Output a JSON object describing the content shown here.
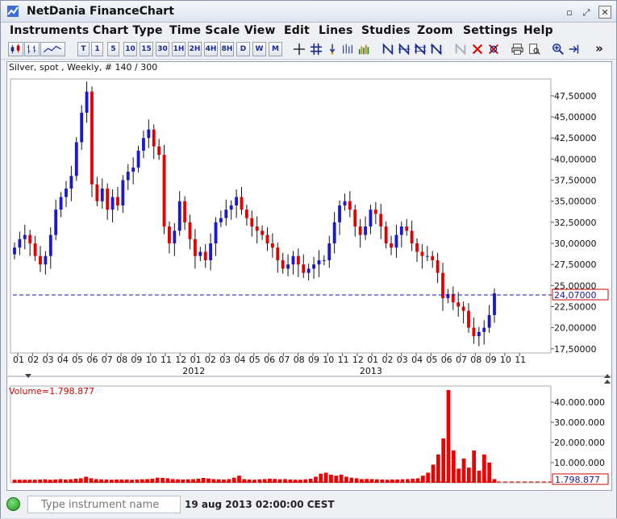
{
  "window": {
    "title": "NetDania FinanceChart",
    "minimize_glyph": "▫",
    "maximize_glyph": "⤢",
    "close_glyph": "✕"
  },
  "menu": [
    "Instruments",
    "Chart Type",
    "Time Scale",
    "View",
    "Edit",
    "Lines",
    "Studies",
    "Zoom",
    "Settings",
    "Help"
  ],
  "toolbar": {
    "periods": [
      "T",
      "1",
      "5",
      "10",
      "15",
      "30",
      "1H",
      "2H",
      "4H",
      "8H",
      "D",
      "W",
      "M"
    ],
    "overflow": "»"
  },
  "chart": {
    "header": "Silver, spot , Weekly, # 140 / 300",
    "last_price_label": "24,07000",
    "volume_header": "Volume=1.798.877",
    "volume_last_label": "1.798.877",
    "price_axis_ticks": [
      "47,50000",
      "45,00000",
      "42,50000",
      "40,00000",
      "37,50000",
      "35,00000",
      "32,50000",
      "30,00000",
      "27,50000",
      "25,00000",
      "22,50000",
      "20,00000",
      "17,50000"
    ],
    "volume_axis_ticks": [
      "40.000.000",
      "30.000.000",
      "20.000.000",
      "10.000.000"
    ],
    "month_ticks": [
      "01",
      "02",
      "03",
      "04",
      "05",
      "06",
      "07",
      "08",
      "09",
      "10",
      "11",
      "12",
      "01",
      "02",
      "03",
      "04",
      "05",
      "06",
      "07",
      "08",
      "09",
      "10",
      "11",
      "12",
      "01",
      "02",
      "03",
      "04",
      "05",
      "06",
      "07",
      "08",
      "09",
      "10",
      "11"
    ],
    "year_labels": [
      "2012",
      "2013"
    ],
    "colors": {
      "up": "#1a1acc",
      "down": "#e00000",
      "volume": "#ee0000",
      "last_line": "#1a1a99"
    }
  },
  "chart_data": {
    "type": "candlestick",
    "instrument": "Silver, spot",
    "interval": "Weekly",
    "price_range": [
      17.0,
      49.5
    ],
    "volume_range": [
      0,
      48000000
    ],
    "last_price": 24.07,
    "last_volume": 1798877,
    "weekly_close_approx": [
      29.5,
      30.5,
      31.0,
      30.0,
      28.5,
      27.5,
      28.5,
      31.0,
      34.0,
      35.5,
      36.5,
      38.0,
      42.0,
      45.5,
      48.0,
      37.0,
      35.0,
      36.5,
      34.0,
      35.5,
      34.5,
      37.5,
      38.5,
      39.0,
      41.0,
      42.5,
      43.5,
      41.5,
      40.5,
      32.0,
      30.0,
      31.5,
      35.0,
      32.5,
      30.5,
      28.5,
      29.0,
      28.0,
      30.0,
      32.5,
      33.0,
      34.0,
      34.5,
      35.5,
      34.0,
      33.0,
      32.0,
      31.5,
      31.0,
      30.0,
      29.5,
      28.0,
      27.0,
      27.5,
      28.5,
      27.5,
      26.5,
      27.0,
      27.5,
      28.0,
      28.0,
      30.0,
      32.5,
      34.5,
      35.0,
      34.0,
      32.0,
      31.0,
      32.0,
      34.0,
      33.5,
      32.0,
      30.0,
      29.5,
      31.0,
      32.0,
      31.5,
      30.0,
      29.0,
      28.5,
      28.5,
      28.0,
      26.5,
      23.5,
      24.0,
      23.0,
      22.5,
      22.0,
      20.0,
      19.0,
      19.5,
      20.0,
      21.5,
      24.07
    ],
    "weekly_volume_approx": [
      1.5,
      1.5,
      1.5,
      1.5,
      1.5,
      1.6,
      1.7,
      1.5,
      1.6,
      1.8,
      1.6,
      1.7,
      2.0,
      2.2,
      3.0,
      2.2,
      1.8,
      1.7,
      1.6,
      1.5,
      1.6,
      1.6,
      1.6,
      1.5,
      1.6,
      1.7,
      1.8,
      2.0,
      2.5,
      2.4,
      2.2,
      1.8,
      1.7,
      1.6,
      1.7,
      1.8,
      2.0,
      2.4,
      2.1,
      1.8,
      1.7,
      1.6,
      1.8,
      2.5,
      3.5,
      1.8,
      1.6,
      1.5,
      1.7,
      1.8,
      2.0,
      1.9,
      1.7,
      1.8,
      1.6,
      1.5,
      1.5,
      1.7,
      2.0,
      3.0,
      4.5,
      5.0,
      4.0,
      3.5,
      4.0,
      3.0,
      2.5,
      2.2,
      1.8,
      1.9,
      1.8,
      1.7,
      1.6,
      1.5,
      1.6,
      1.6,
      1.7,
      1.8,
      2.0,
      2.2,
      3.5,
      5.0,
      9.0,
      14.0,
      22.0,
      46.0,
      16.0,
      7.0,
      12.0,
      7.5,
      16.0,
      6.0,
      14.0,
      10.0,
      1.8
    ]
  },
  "status": {
    "search_placeholder": "Type instrument name",
    "timestamp": "19 aug 2013 02:00:00 CEST"
  }
}
